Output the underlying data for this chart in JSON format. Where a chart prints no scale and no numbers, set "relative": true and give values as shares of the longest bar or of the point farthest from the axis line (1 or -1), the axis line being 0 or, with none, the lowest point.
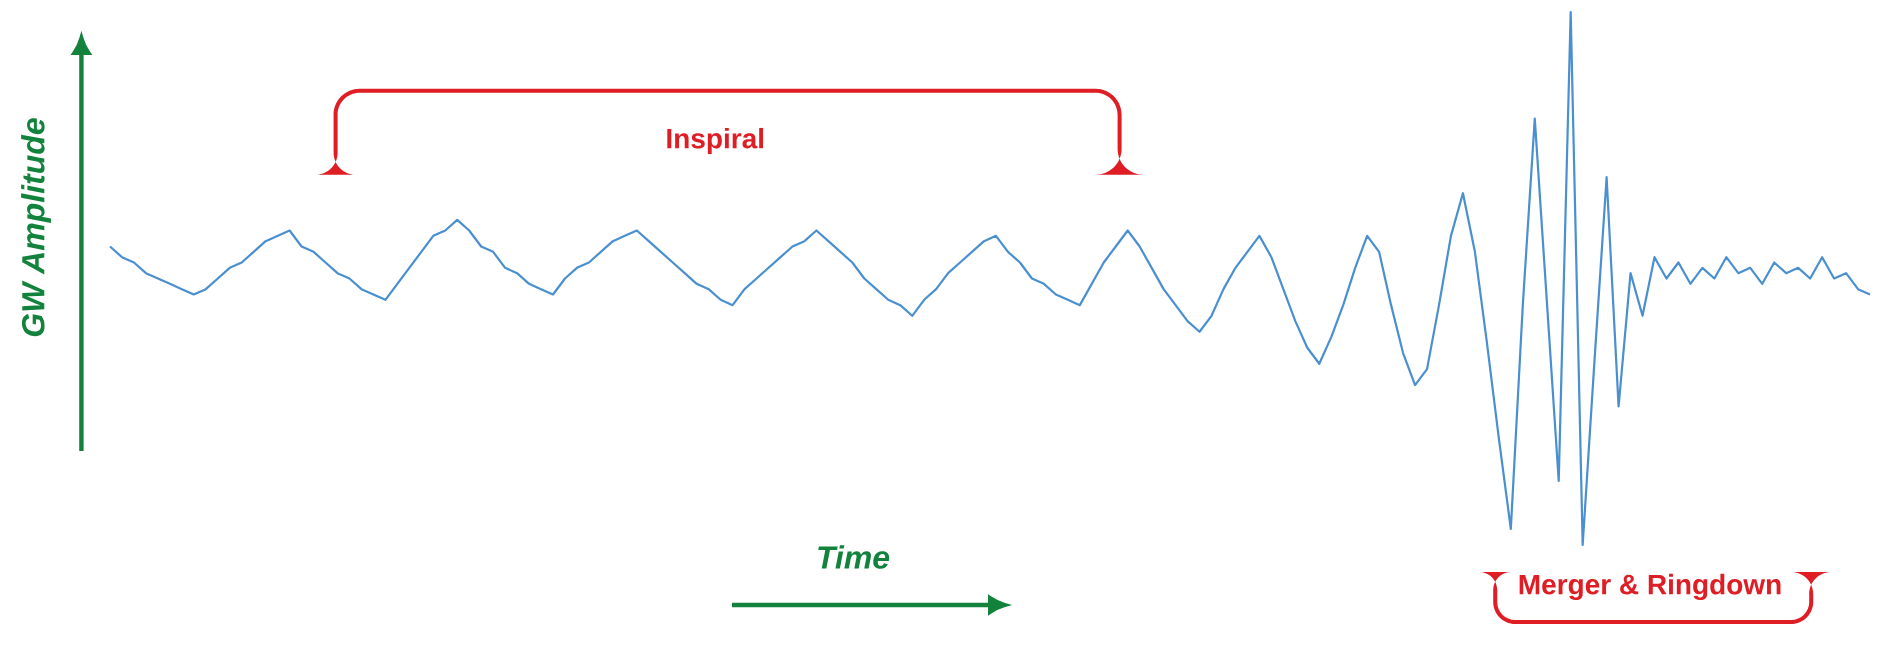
{
  "chart_data": {
    "type": "line",
    "relative": true,
    "xlabel": "Time",
    "ylabel": "GW Amplitude",
    "annotations": [
      "Inspiral",
      "Merger & Ringdown"
    ],
    "categories": [
      null,
      null,
      null,
      null,
      null,
      null,
      null,
      null,
      null,
      null,
      null,
      null,
      null,
      null,
      null,
      null,
      null,
      null,
      null,
      null,
      null,
      null,
      null,
      null,
      null,
      null,
      null,
      null,
      null,
      null,
      null,
      null,
      null,
      null,
      null,
      null,
      null,
      null,
      null,
      null,
      null,
      null,
      null,
      null,
      null,
      null,
      null,
      null,
      null,
      null,
      null,
      null,
      null,
      null,
      null,
      null,
      null,
      null,
      null,
      null,
      null,
      null,
      null,
      null,
      null,
      null,
      null,
      null,
      null,
      null,
      null,
      null,
      null,
      null,
      null,
      null,
      null,
      null,
      null,
      null,
      null,
      null,
      null,
      null,
      null,
      null,
      null,
      null,
      null,
      null,
      null,
      null,
      null,
      null,
      null,
      null,
      null,
      null,
      null,
      null,
      null,
      null,
      null,
      null,
      null,
      null,
      null,
      null,
      null,
      null,
      null,
      null,
      null,
      null,
      null,
      null,
      null,
      null,
      null,
      null,
      null,
      null,
      null,
      null,
      null,
      null,
      null,
      null,
      null,
      null,
      null,
      null,
      null,
      null,
      null,
      null,
      null,
      null,
      null,
      null,
      null,
      null,
      null,
      null,
      null,
      null,
      null,
      null
    ],
    "color": "#4a8fd0",
    "values": [
      0.56,
      0.54,
      0.53,
      0.51,
      0.5,
      0.49,
      0.48,
      0.47,
      0.48,
      0.5,
      0.52,
      0.53,
      0.55,
      0.57,
      0.58,
      0.59,
      0.56,
      0.55,
      0.53,
      0.51,
      0.5,
      0.48,
      0.47,
      0.46,
      0.49,
      0.52,
      0.55,
      0.58,
      0.59,
      0.61,
      0.59,
      0.56,
      0.55,
      0.52,
      0.51,
      0.49,
      0.48,
      0.47,
      0.5,
      0.52,
      0.53,
      0.55,
      0.57,
      0.58,
      0.59,
      0.57,
      0.55,
      0.53,
      0.51,
      0.49,
      0.48,
      0.46,
      0.45,
      0.48,
      0.5,
      0.52,
      0.54,
      0.56,
      0.57,
      0.59,
      0.57,
      0.55,
      0.53,
      0.5,
      0.48,
      0.46,
      0.45,
      0.43,
      0.46,
      0.48,
      0.51,
      0.53,
      0.55,
      0.57,
      0.58,
      0.55,
      0.53,
      0.5,
      0.49,
      0.47,
      0.46,
      0.45,
      0.49,
      0.53,
      0.56,
      0.59,
      0.56,
      0.52,
      0.48,
      0.45,
      0.42,
      0.4,
      0.43,
      0.48,
      0.52,
      0.55,
      0.58,
      0.54,
      0.48,
      0.42,
      0.37,
      0.34,
      0.39,
      0.45,
      0.52,
      0.58,
      0.55,
      0.45,
      0.36,
      0.3,
      0.33,
      0.45,
      0.58,
      0.66,
      0.55,
      0.38,
      0.2,
      0.03,
      0.45,
      0.8,
      0.46,
      0.12,
      1.0,
      0.0,
      0.35,
      0.69,
      0.26,
      0.51,
      0.43,
      0.54,
      0.5,
      0.53,
      0.49,
      0.52,
      0.5,
      0.54,
      0.51,
      0.52,
      0.49,
      0.53,
      0.51,
      0.52,
      0.5,
      0.54,
      0.5,
      0.51,
      0.48,
      0.47
    ]
  }
}
